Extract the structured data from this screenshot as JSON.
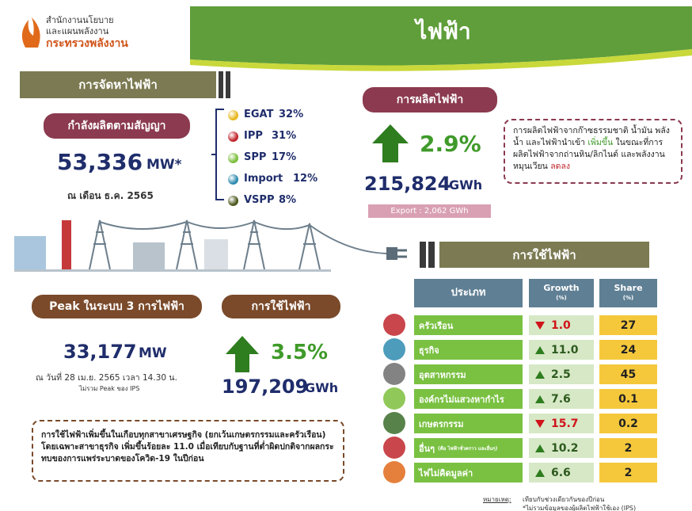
{
  "header": {
    "org_line1": "สำนักงานนโยบาย",
    "org_line2": "และแผนพลังงาน",
    "ministry": "กระทรวงพลังงาน",
    "title": "ไฟฟ้า"
  },
  "supply": {
    "heading": "การจัดหาไฟฟ้า",
    "capacity_label": "กำลังผลิตตามสัญญา",
    "capacity_value": "53,336",
    "capacity_unit": "MW*",
    "as_of": "ณ เดือน ธ.ค. 2565",
    "sources": [
      {
        "name": "EGAT",
        "share": "32%",
        "color": "#e8b820"
      },
      {
        "name": "IPP",
        "share": "31%",
        "color": "#c0262d"
      },
      {
        "name": "SPP",
        "share": "17%",
        "color": "#7cbf3c"
      },
      {
        "name": "Import",
        "share": "12%",
        "color": "#2e8bb0"
      },
      {
        "name": "VSPP",
        "share": "8%",
        "color": "#4d5a1e"
      }
    ]
  },
  "production": {
    "heading": "การผลิตไฟฟ้า",
    "growth": "2.9%",
    "value": "215,824",
    "unit": "GWh",
    "export": "Export : 2,062 GWh",
    "note": {
      "part1": "การผลิตไฟฟ้าจากก๊าซธรรมชาติ น้ำมัน พลังน้ำ และไฟฟ้านำเข้า ",
      "rise": "เพิ่มขึ้น",
      "part2": " ในขณะที่การผลิตไฟฟ้าจากถ่านหิน/ลิกไนต์ และพลังงานหมุนเวียน ",
      "fall": "ลดลง"
    }
  },
  "peak": {
    "heading": "Peak ในระบบ 3 การไฟฟ้า",
    "value": "33,177",
    "unit": "MW",
    "date": "ณ วันที่ 28 เม.ย. 2565 เวลา 14.30 น.",
    "sub": "ไม่รวม Peak ของ IPS"
  },
  "consumption": {
    "heading": "การใช้ไฟฟ้า",
    "growth": "3.5%",
    "value": "197,209",
    "unit": "GWh",
    "note": "การใช้ไฟฟ้าเพิ่มขึ้นในเกือบทุกสาขาเศรษฐกิจ (ยกเว้นเกษตรกรรมและครัวเรือน) โดยเฉพาะสาขาธุรกิจ เพิ่มขึ้นร้อยละ 11.0 เมื่อเทียบกับฐานที่ต่ำผิดปกติจากผลกระทบของการแพร่ระบาดของโควิด-19 ในปีก่อน"
  },
  "table": {
    "heading": "การใช้ไฟฟ้า",
    "columns": [
      "ประเภท",
      "Growth",
      "Share"
    ],
    "unit": "(%)",
    "rows": [
      {
        "name": "ครัวเรือน",
        "direction": "down",
        "growth": "1.0",
        "share": "27"
      },
      {
        "name": "ธุรกิจ",
        "direction": "up",
        "growth": "11.0",
        "share": "24"
      },
      {
        "name": "อุตสาหกรรม",
        "direction": "up",
        "growth": "2.5",
        "share": "45"
      },
      {
        "name": "องค์กรไม่แสวงหากำไร",
        "direction": "up",
        "growth": "7.6",
        "share": "0.1"
      },
      {
        "name": "เกษตรกรรม",
        "direction": "down",
        "growth": "15.7",
        "share": "0.2"
      },
      {
        "name": "อื่นๆ",
        "sub": "(คือ ไฟฟ้าชั่วคราว และอื่นๆ)",
        "direction": "up",
        "growth": "10.2",
        "share": "2"
      },
      {
        "name": "ไฟไม่คิดมูลค่า",
        "direction": "up",
        "growth": "6.6",
        "share": "2"
      }
    ]
  },
  "footnote": {
    "label": "หมายเหตุ:",
    "line1": "เทียบกับช่วงเดียวกันของปีก่อน",
    "line2": "*ไม่รวมข้อมูลของผู้ผลิตไฟฟ้าใช้เอง (IPS)"
  }
}
